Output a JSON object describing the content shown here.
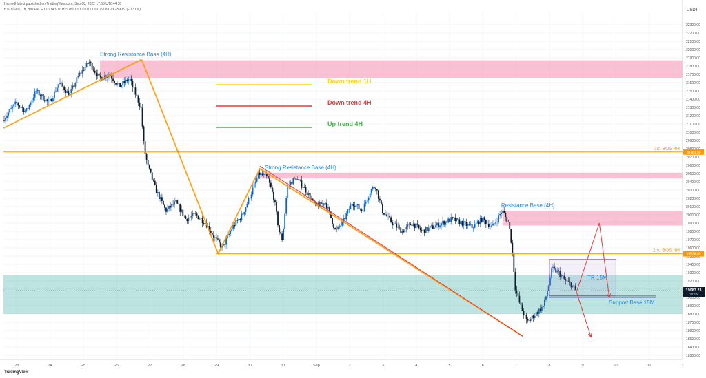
{
  "header": {
    "line1": "HamedHateki published on TradingView.com, Sep 08, 2022 17:58 UTC+4:30",
    "line2": "BTCUSDT, 1h, BINANCE  O19143.10  H19180.00  L19012.00  C19083.23  −59.89 (−0.31%)"
  },
  "footer": {
    "brand": "TradingView"
  },
  "chart_data": {
    "type": "candlestick",
    "yunit": "USDT",
    "ylim": [
      18250,
      22450
    ],
    "xlim": [
      22.6,
      11.9
    ],
    "yticks": [
      18300,
      18400,
      18500,
      18600,
      18700,
      18800,
      18900,
      19000,
      19100,
      19200,
      19300,
      19400,
      19500,
      19600,
      19700,
      19800,
      19900,
      20000,
      20100,
      20200,
      20300,
      20400,
      20500,
      20600,
      20700,
      20800,
      20900,
      21000,
      21100,
      21200,
      21300,
      21400,
      21500,
      21600,
      21700,
      21800,
      21900,
      22000,
      22100,
      22200,
      22300
    ],
    "xticks": [
      {
        "t": 23,
        "label": "23"
      },
      {
        "t": 24,
        "label": "24"
      },
      {
        "t": 25,
        "label": "25"
      },
      {
        "t": 26,
        "label": "26"
      },
      {
        "t": 27,
        "label": "27"
      },
      {
        "t": 28,
        "label": "28"
      },
      {
        "t": 29,
        "label": "29"
      },
      {
        "t": 30,
        "label": "30"
      },
      {
        "t": 31,
        "label": "31"
      },
      {
        "t": 32,
        "label": "Sep"
      },
      {
        "t": 33,
        "label": "2"
      },
      {
        "t": 34,
        "label": "3"
      },
      {
        "t": 35,
        "label": "4"
      },
      {
        "t": 36,
        "label": "5"
      },
      {
        "t": 37,
        "label": "6"
      },
      {
        "t": 38,
        "label": "7"
      },
      {
        "t": 39,
        "label": "8"
      },
      {
        "t": 40,
        "label": "9"
      },
      {
        "t": 41,
        "label": "10"
      },
      {
        "t": 42,
        "label": "11"
      },
      {
        "t": 43,
        "label": "1"
      }
    ],
    "price_path": [
      [
        22.6,
        21150
      ],
      [
        23.0,
        21350
      ],
      [
        23.3,
        21250
      ],
      [
        23.6,
        21500
      ],
      [
        24.0,
        21350
      ],
      [
        24.3,
        21600
      ],
      [
        24.6,
        21450
      ],
      [
        24.9,
        21700
      ],
      [
        25.2,
        21850
      ],
      [
        25.5,
        21650
      ],
      [
        25.8,
        21700
      ],
      [
        26.1,
        21550
      ],
      [
        26.4,
        21650
      ],
      [
        26.6,
        21450
      ],
      [
        26.75,
        21300
      ],
      [
        26.85,
        20800
      ],
      [
        26.95,
        20600
      ],
      [
        27.2,
        20300
      ],
      [
        27.5,
        20050
      ],
      [
        27.8,
        20150
      ],
      [
        28.1,
        19950
      ],
      [
        28.4,
        20000
      ],
      [
        28.7,
        19900
      ],
      [
        29.0,
        19700
      ],
      [
        29.2,
        19600
      ],
      [
        29.5,
        19850
      ],
      [
        29.8,
        20000
      ],
      [
        30.1,
        20300
      ],
      [
        30.3,
        20500
      ],
      [
        30.55,
        20450
      ],
      [
        30.75,
        20200
      ],
      [
        30.9,
        19800
      ],
      [
        31.0,
        19700
      ],
      [
        31.15,
        20350
      ],
      [
        31.4,
        20450
      ],
      [
        31.7,
        20300
      ],
      [
        32.0,
        20100
      ],
      [
        32.3,
        20150
      ],
      [
        32.6,
        19800
      ],
      [
        32.8,
        19900
      ],
      [
        33.1,
        20150
      ],
      [
        33.4,
        20050
      ],
      [
        33.65,
        20300
      ],
      [
        33.8,
        20350
      ],
      [
        34.0,
        20050
      ],
      [
        34.3,
        19900
      ],
      [
        34.6,
        19800
      ],
      [
        34.9,
        19900
      ],
      [
        35.2,
        19800
      ],
      [
        35.5,
        19850
      ],
      [
        35.8,
        19900
      ],
      [
        36.1,
        19950
      ],
      [
        36.4,
        19900
      ],
      [
        36.7,
        19850
      ],
      [
        37.0,
        19950
      ],
      [
        37.3,
        19850
      ],
      [
        37.6,
        20050
      ],
      [
        37.8,
        19900
      ],
      [
        37.9,
        19600
      ],
      [
        38.0,
        19100
      ],
      [
        38.15,
        18900
      ],
      [
        38.35,
        18700
      ],
      [
        38.6,
        18800
      ],
      [
        38.85,
        18900
      ],
      [
        39.0,
        19150
      ],
      [
        39.1,
        19350
      ],
      [
        39.3,
        19300
      ],
      [
        39.5,
        19200
      ],
      [
        39.7,
        19150
      ],
      [
        39.8,
        19083
      ]
    ],
    "zones": [
      {
        "x1": 25.5,
        "x2": 43.0,
        "y1": 21650,
        "y2": 21870,
        "color": "#f48fb1"
      },
      {
        "x1": 30.3,
        "x2": 43.0,
        "y1": 20440,
        "y2": 20510,
        "color": "#f48fb1"
      },
      {
        "x1": 37.6,
        "x2": 43.0,
        "y1": 19870,
        "y2": 20050,
        "color": "#f48fb1"
      },
      {
        "x1": 22.6,
        "x2": 43.0,
        "y1": 18800,
        "y2": 19270,
        "color": "#26a69a"
      }
    ],
    "hlines": [
      {
        "y": 20760,
        "x1": 22.6,
        "x2": 43.0,
        "color": "#ff9800",
        "label": "1st BOS 4H",
        "price_label": "20761.50"
      },
      {
        "y": 19528,
        "x1": 29.0,
        "x2": 43.0,
        "color": "#ff9800",
        "label": "2nd BOS 4H",
        "price_label": "19528.00"
      }
    ],
    "trendlines": [
      {
        "color": "#ff9800",
        "points": [
          [
            22.6,
            21050
          ],
          [
            26.75,
            21880
          ]
        ]
      },
      {
        "color": "#ff9800",
        "points": [
          [
            26.75,
            21880
          ],
          [
            29.05,
            19530
          ],
          [
            30.3,
            20560
          ],
          [
            38.2,
            18530
          ]
        ]
      },
      {
        "color": "#e53935",
        "points": [
          [
            30.3,
            20590
          ],
          [
            38.2,
            18530
          ]
        ]
      }
    ],
    "trading_range": {
      "x1": 39.0,
      "x2": 41.0,
      "y1": 19020,
      "y2": 19460,
      "color": "#7e57c2",
      "label": "TR 15M"
    },
    "support_line": {
      "x1": 39.0,
      "x2": 42.2,
      "y": 19010,
      "color": "#5c6bc0",
      "label": "Support Base 15M"
    },
    "projections": [
      {
        "color": "#e53935",
        "points": [
          [
            39.8,
            19050
          ],
          [
            40.5,
            19900
          ],
          [
            40.8,
            19000
          ]
        ]
      },
      {
        "color": "#e53935",
        "points": [
          [
            39.8,
            19083
          ],
          [
            40.25,
            18520
          ]
        ]
      }
    ],
    "legend": [
      {
        "label": "Down trend 1H",
        "color": "#ffd600"
      },
      {
        "label": "Down trend 4H",
        "color": "#e53935"
      },
      {
        "label": "Up trend 4H",
        "color": "#4caf50"
      }
    ],
    "annotations": [
      {
        "text": "Strong Resistance Base (4H)",
        "x": 25.5,
        "y": 21920,
        "color": "#1e88e5"
      },
      {
        "text": "Strong Resistance Base (4H)",
        "x": 30.45,
        "y": 20550,
        "color": "#1e88e5"
      },
      {
        "text": "Resistance Base (4H)",
        "x": 37.55,
        "y": 20090,
        "color": "#1e88e5"
      }
    ],
    "last_price": {
      "y": 19083,
      "label": "19083.23",
      "sub": "31:19"
    }
  }
}
